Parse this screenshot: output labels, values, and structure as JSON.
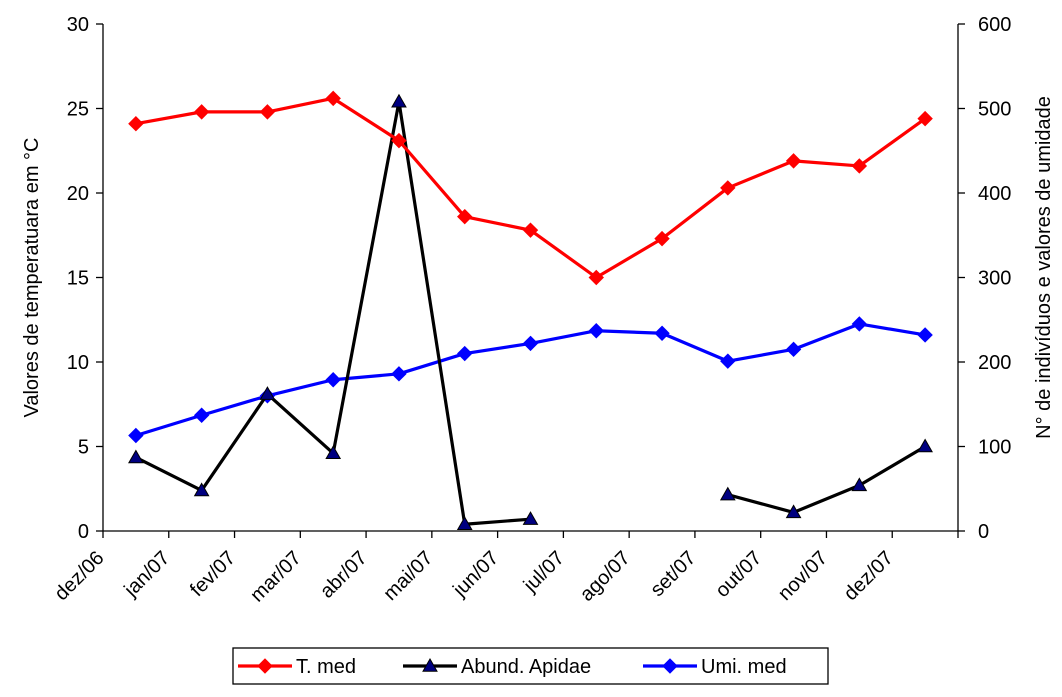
{
  "chart_data": {
    "type": "line",
    "title": "",
    "categories": [
      "dez/06",
      "jan/07",
      "fev/07",
      "mar/07",
      "abr/07",
      "mai/07",
      "jun/07",
      "jul/07",
      "ago/07",
      "set/07",
      "out/07",
      "nov/07",
      "dez/07"
    ],
    "y_left": {
      "label": "Valores de temperatuara em °C",
      "range": [
        0,
        30
      ],
      "ticks": [
        "0",
        "5",
        "10",
        "15",
        "20",
        "25",
        "30"
      ]
    },
    "y_right": {
      "label": "N° de indivíduos e valores de umidade",
      "range": [
        0,
        600
      ],
      "ticks": [
        "0",
        "100",
        "200",
        "300",
        "400",
        "500",
        "600"
      ]
    },
    "legend_position": "bottom",
    "series": [
      {
        "name": "T. med",
        "axis": "left",
        "color": "#ff0000",
        "marker": "diamond",
        "values": [
          24.1,
          24.8,
          24.8,
          25.6,
          23.1,
          18.6,
          17.8,
          15.0,
          17.3,
          20.3,
          21.9,
          21.6,
          24.4
        ]
      },
      {
        "name": "Abund. Apidae",
        "axis": "right",
        "color": "#000000",
        "marker_color": "#000080",
        "marker": "triangle",
        "values": [
          87,
          48,
          162,
          92,
          508,
          8,
          14,
          null,
          null,
          43,
          22,
          54,
          100
        ]
      },
      {
        "name": "Umi. med",
        "axis": "right",
        "color": "#0000ff",
        "marker": "diamond",
        "values": [
          113,
          137,
          160,
          179,
          186,
          210,
          222,
          237,
          234,
          201,
          215,
          245,
          232
        ]
      }
    ]
  }
}
